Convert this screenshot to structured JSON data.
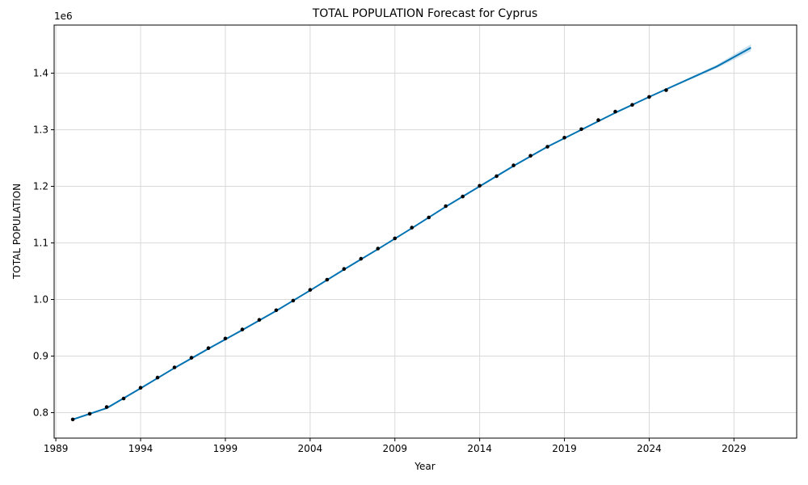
{
  "chart_data": {
    "type": "line",
    "title": "TOTAL POPULATION Forecast for Cyprus",
    "xlabel": "Year",
    "ylabel": "TOTAL POPULATION",
    "y_offset_label": "1e6",
    "xlim": [
      1988.9,
      2032.7
    ],
    "ylim": [
      0.755,
      1.485
    ],
    "grid": true,
    "x_ticks": [
      1989,
      1994,
      1999,
      2004,
      2009,
      2014,
      2019,
      2024,
      2029
    ],
    "x_tick_labels": [
      "1989",
      "1994",
      "1999",
      "2004",
      "2009",
      "2014",
      "2019",
      "2024",
      "2029"
    ],
    "y_ticks": [
      0.8,
      0.9,
      1.0,
      1.1,
      1.2,
      1.3,
      1.4
    ],
    "y_tick_labels": [
      "0.8",
      "0.9",
      "1.0",
      "1.1",
      "1.2",
      "1.3",
      "1.4"
    ],
    "series": [
      {
        "kind": "observed",
        "style": "points",
        "color": "#000000",
        "x": [
          1990,
          1991,
          1992,
          1993,
          1994,
          1995,
          1996,
          1997,
          1998,
          1999,
          2000,
          2001,
          2002,
          2003,
          2004,
          2005,
          2006,
          2007,
          2008,
          2009,
          2010,
          2011,
          2012,
          2013,
          2014,
          2015,
          2016,
          2017,
          2018,
          2019,
          2020,
          2021,
          2022,
          2023,
          2024,
          2025
        ],
        "y": [
          0.788,
          0.798,
          0.81,
          0.825,
          0.844,
          0.862,
          0.88,
          0.897,
          0.914,
          0.931,
          0.947,
          0.964,
          0.981,
          0.998,
          1.017,
          1.035,
          1.054,
          1.072,
          1.09,
          1.108,
          1.127,
          1.145,
          1.165,
          1.182,
          1.201,
          1.218,
          1.237,
          1.254,
          1.27,
          1.286,
          1.301,
          1.317,
          1.332,
          1.344,
          1.358,
          1.37
        ]
      },
      {
        "kind": "forecast",
        "style": "line",
        "color": "#0072b2",
        "x": [
          1990,
          1992,
          1994,
          1996,
          1998,
          2000,
          2002,
          2004,
          2006,
          2008,
          2010,
          2012,
          2014,
          2016,
          2018,
          2020,
          2022,
          2024,
          2026,
          2028,
          2030
        ],
        "y": [
          0.788,
          0.808,
          0.843,
          0.879,
          0.913,
          0.946,
          0.98,
          1.016,
          1.053,
          1.089,
          1.126,
          1.164,
          1.2,
          1.236,
          1.27,
          1.3,
          1.33,
          1.358,
          1.385,
          1.412,
          1.445
        ],
        "lower": [
          0.787,
          0.807,
          0.842,
          0.878,
          0.912,
          0.945,
          0.979,
          1.015,
          1.052,
          1.088,
          1.125,
          1.163,
          1.199,
          1.235,
          1.269,
          1.299,
          1.329,
          1.357,
          1.383,
          1.409,
          1.439
        ],
        "upper": [
          0.789,
          0.809,
          0.844,
          0.88,
          0.914,
          0.947,
          0.981,
          1.017,
          1.054,
          1.09,
          1.127,
          1.165,
          1.201,
          1.237,
          1.271,
          1.301,
          1.331,
          1.359,
          1.387,
          1.415,
          1.451
        ],
        "band_color": "#9ecae1"
      }
    ]
  }
}
